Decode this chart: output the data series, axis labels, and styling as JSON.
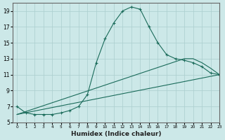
{
  "xlabel": "Humidex (Indice chaleur)",
  "bg_color": "#cce8e8",
  "grid_color": "#aacece",
  "line_color": "#1a6b5a",
  "curve1_x": [
    0,
    1,
    2,
    3,
    4,
    5,
    6,
    7,
    8,
    9,
    10,
    11,
    12,
    13,
    14,
    15,
    16,
    17,
    18,
    19,
    20,
    21,
    22,
    23
  ],
  "curve1_y": [
    7.0,
    6.2,
    6.0,
    6.0,
    6.0,
    6.2,
    6.5,
    7.0,
    8.5,
    12.5,
    15.5,
    17.5,
    19.0,
    19.5,
    19.2,
    17.0,
    15.0,
    13.5,
    13.0,
    12.8,
    12.5,
    12.0,
    11.2,
    11.0
  ],
  "curve2_x": [
    0,
    23
  ],
  "curve2_y": [
    6.0,
    11.0
  ],
  "curve3_x": [
    0,
    19,
    20,
    21,
    22,
    23
  ],
  "curve3_y": [
    6.0,
    13.0,
    13.0,
    12.5,
    11.8,
    11.0
  ],
  "xlim": [
    -0.5,
    23
  ],
  "ylim": [
    5,
    20
  ],
  "yticks": [
    5,
    7,
    9,
    11,
    13,
    15,
    17,
    19
  ],
  "xticks": [
    0,
    1,
    2,
    3,
    4,
    5,
    6,
    7,
    8,
    9,
    10,
    11,
    12,
    13,
    14,
    15,
    16,
    17,
    18,
    19,
    20,
    21,
    22,
    23
  ]
}
